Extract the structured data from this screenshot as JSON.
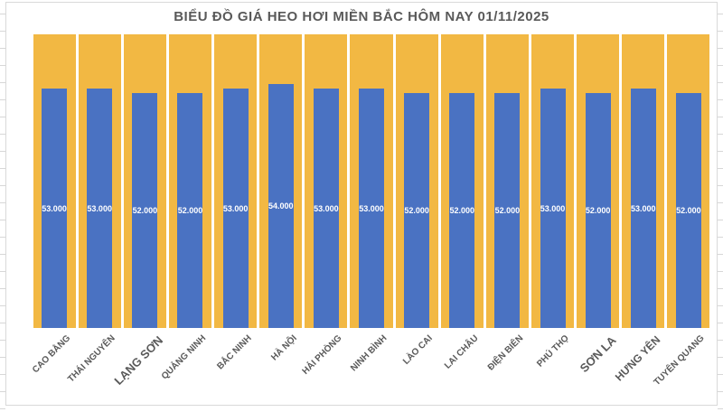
{
  "title": "BIỂU ĐỒ GIÁ HEO HƠI MIỀN BẮC HÔM NAY 01/11/2025",
  "colors": {
    "bar_fill": "#4A72C2",
    "background_column_fill": "#F2B843",
    "title_text": "#595959",
    "category_label_text": "#595959",
    "value_label_text": "#FFFFFF",
    "chart_border": "#D9D9D9",
    "worksheet_gridline": "#D7D7D7"
  },
  "chart_data": {
    "type": "bar",
    "title": "BIỂU ĐỒ GIÁ HEO HƠI MIỀN BẮC HÔM NAY 01/11/2025",
    "categories": [
      "CAO BẰNG",
      "THÁI NGUYÊN",
      "LẠNG SƠN",
      "QUẢNG NINH",
      "BẮC NINH",
      "HÀ NỘI",
      "HẢI PHÒNG",
      "NINH BÌNH",
      "LÀO CAI",
      "LAI CHÂU",
      "ĐIỆN BIÊN",
      "PHÚ THỌ",
      "SƠN LA",
      "HƯNG YÊN",
      "TUYÊN QUANG"
    ],
    "values": [
      53000,
      53000,
      52000,
      52000,
      53000,
      54000,
      53000,
      53000,
      52000,
      52000,
      52000,
      53000,
      52000,
      53000,
      52000
    ],
    "value_labels": [
      "53.000",
      "53.000",
      "52.000",
      "52.000",
      "53.000",
      "54.000",
      "53.000",
      "53.000",
      "52.000",
      "52.000",
      "52.000",
      "53.000",
      "52.000",
      "53.000",
      "52.000"
    ],
    "category_label_sizes": [
      10,
      10,
      13,
      10,
      10,
      10,
      10,
      10,
      10,
      10,
      10,
      10,
      13,
      12,
      10
    ],
    "xlabel": "",
    "ylabel": "",
    "ylim": [
      0,
      65000
    ],
    "grid": false,
    "legend": false,
    "value_axis_visible": false,
    "background_columns_full_height": true
  }
}
